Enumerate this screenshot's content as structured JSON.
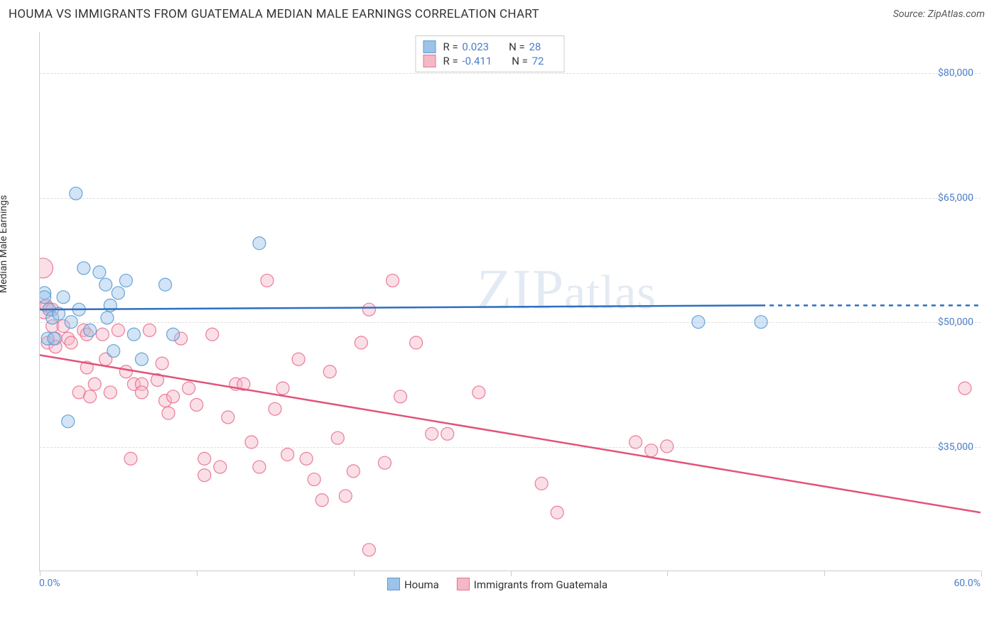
{
  "title": "HOUMA VS IMMIGRANTS FROM GUATEMALA MEDIAN MALE EARNINGS CORRELATION CHART",
  "source": "Source: ZipAtlas.com",
  "watermark": "ZIPatlas",
  "chart": {
    "type": "scatter",
    "y_axis_label": "Median Male Earnings",
    "xlim": [
      0,
      60
    ],
    "ylim": [
      20000,
      85000
    ],
    "x_min_label": "0.0%",
    "x_max_label": "60.0%",
    "y_ticks": [
      35000,
      50000,
      65000,
      80000
    ],
    "y_tick_labels": [
      "$35,000",
      "$50,000",
      "$65,000",
      "$80,000"
    ],
    "x_ticks": [
      0,
      10,
      20,
      30,
      40,
      50,
      60
    ],
    "grid_color": "#dddddd",
    "axis_color": "#cccccc",
    "background_color": "#ffffff",
    "marker_radius": 9,
    "marker_opacity": 0.45,
    "marker_stroke_opacity": 0.9,
    "line_width": 2.5,
    "title_fontsize": 17,
    "label_fontsize": 14,
    "tick_fontsize": 14,
    "tick_color": "#4a7ec9"
  },
  "series": {
    "houma": {
      "label": "Houma",
      "fill_color": "#9cc3e8",
      "stroke_color": "#5a9bd5",
      "line_color": "#2e6fc0",
      "R": "0.023",
      "N": "28",
      "regression": {
        "x1": 0,
        "y1": 51500,
        "x2": 46,
        "y2": 52000,
        "dash_from": 46,
        "dash_to": 60
      },
      "points": [
        {
          "x": 0.3,
          "y": 53500
        },
        {
          "x": 0.3,
          "y": 53000
        },
        {
          "x": 0.5,
          "y": 48000
        },
        {
          "x": 0.6,
          "y": 51500
        },
        {
          "x": 0.8,
          "y": 50500
        },
        {
          "x": 0.9,
          "y": 48000
        },
        {
          "x": 1.2,
          "y": 51000
        },
        {
          "x": 1.5,
          "y": 53000
        },
        {
          "x": 1.8,
          "y": 38000
        },
        {
          "x": 2.0,
          "y": 50000
        },
        {
          "x": 2.3,
          "y": 65500
        },
        {
          "x": 2.5,
          "y": 51500
        },
        {
          "x": 2.8,
          "y": 56500
        },
        {
          "x": 3.2,
          "y": 49000
        },
        {
          "x": 3.8,
          "y": 56000
        },
        {
          "x": 4.2,
          "y": 54500
        },
        {
          "x": 4.3,
          "y": 50500
        },
        {
          "x": 4.5,
          "y": 52000
        },
        {
          "x": 4.7,
          "y": 46500
        },
        {
          "x": 5.0,
          "y": 53500
        },
        {
          "x": 5.5,
          "y": 55000
        },
        {
          "x": 6.0,
          "y": 48500
        },
        {
          "x": 6.5,
          "y": 45500
        },
        {
          "x": 8.0,
          "y": 54500
        },
        {
          "x": 8.5,
          "y": 48500
        },
        {
          "x": 14.0,
          "y": 59500
        },
        {
          "x": 42.0,
          "y": 50000
        },
        {
          "x": 46.0,
          "y": 50000
        }
      ]
    },
    "guatemala": {
      "label": "Immigrants from Guatemala",
      "fill_color": "#f5b8c7",
      "stroke_color": "#e97090",
      "line_color": "#e2537a",
      "R": "-0.411",
      "N": "72",
      "regression": {
        "x1": 0,
        "y1": 46000,
        "x2": 60,
        "y2": 27000
      },
      "points": [
        {
          "x": 0.2,
          "y": 56500,
          "r": 14
        },
        {
          "x": 0.3,
          "y": 51500,
          "r": 13
        },
        {
          "x": 0.4,
          "y": 52000
        },
        {
          "x": 0.5,
          "y": 47500
        },
        {
          "x": 0.8,
          "y": 49500
        },
        {
          "x": 0.8,
          "y": 51500
        },
        {
          "x": 1.0,
          "y": 48000
        },
        {
          "x": 1.0,
          "y": 47000
        },
        {
          "x": 1.5,
          "y": 49500
        },
        {
          "x": 1.8,
          "y": 48000
        },
        {
          "x": 2.0,
          "y": 47500
        },
        {
          "x": 2.5,
          "y": 41500
        },
        {
          "x": 2.8,
          "y": 49000
        },
        {
          "x": 3.0,
          "y": 48500
        },
        {
          "x": 3.0,
          "y": 44500
        },
        {
          "x": 3.2,
          "y": 41000
        },
        {
          "x": 3.5,
          "y": 42500
        },
        {
          "x": 4.0,
          "y": 48500
        },
        {
          "x": 4.2,
          "y": 45500
        },
        {
          "x": 4.5,
          "y": 41500
        },
        {
          "x": 5.0,
          "y": 49000
        },
        {
          "x": 5.5,
          "y": 44000
        },
        {
          "x": 5.8,
          "y": 33500
        },
        {
          "x": 6.0,
          "y": 42500
        },
        {
          "x": 6.5,
          "y": 42500
        },
        {
          "x": 6.5,
          "y": 41500
        },
        {
          "x": 7.0,
          "y": 49000
        },
        {
          "x": 7.5,
          "y": 43000
        },
        {
          "x": 7.8,
          "y": 45000
        },
        {
          "x": 8.0,
          "y": 40500
        },
        {
          "x": 8.2,
          "y": 39000
        },
        {
          "x": 8.5,
          "y": 41000
        },
        {
          "x": 9.0,
          "y": 48000
        },
        {
          "x": 9.5,
          "y": 42000
        },
        {
          "x": 10.0,
          "y": 40000
        },
        {
          "x": 10.5,
          "y": 33500
        },
        {
          "x": 10.5,
          "y": 31500
        },
        {
          "x": 11.0,
          "y": 48500
        },
        {
          "x": 11.5,
          "y": 32500
        },
        {
          "x": 12.0,
          "y": 38500
        },
        {
          "x": 12.5,
          "y": 42500
        },
        {
          "x": 13.0,
          "y": 42500
        },
        {
          "x": 13.5,
          "y": 35500
        },
        {
          "x": 14.0,
          "y": 32500
        },
        {
          "x": 14.5,
          "y": 55000
        },
        {
          "x": 15.0,
          "y": 39500
        },
        {
          "x": 15.5,
          "y": 42000
        },
        {
          "x": 15.8,
          "y": 34000
        },
        {
          "x": 16.5,
          "y": 45500
        },
        {
          "x": 17.0,
          "y": 33500
        },
        {
          "x": 17.5,
          "y": 31000
        },
        {
          "x": 18.0,
          "y": 28500
        },
        {
          "x": 18.5,
          "y": 44000
        },
        {
          "x": 19.0,
          "y": 36000
        },
        {
          "x": 19.5,
          "y": 29000
        },
        {
          "x": 20.0,
          "y": 32000
        },
        {
          "x": 20.5,
          "y": 47500
        },
        {
          "x": 21.0,
          "y": 22500
        },
        {
          "x": 21.0,
          "y": 51500
        },
        {
          "x": 22.0,
          "y": 33000
        },
        {
          "x": 22.5,
          "y": 55000
        },
        {
          "x": 23.0,
          "y": 41000
        },
        {
          "x": 24.0,
          "y": 47500
        },
        {
          "x": 25.0,
          "y": 36500
        },
        {
          "x": 26.0,
          "y": 36500
        },
        {
          "x": 28.0,
          "y": 41500
        },
        {
          "x": 32.0,
          "y": 30500
        },
        {
          "x": 33.0,
          "y": 27000
        },
        {
          "x": 38.0,
          "y": 35500
        },
        {
          "x": 39.0,
          "y": 34500
        },
        {
          "x": 40.0,
          "y": 35000
        },
        {
          "x": 59.0,
          "y": 42000
        }
      ]
    }
  }
}
